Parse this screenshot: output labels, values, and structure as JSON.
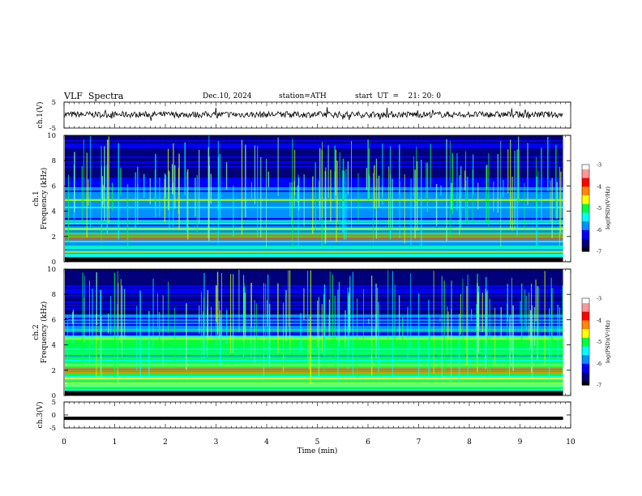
{
  "header": {
    "title": "VLF  Spectra",
    "date": "Dec.10, 2024",
    "station": "station=ATH",
    "start": "start  UT  =    21: 20: 0"
  },
  "chart_data": [
    {
      "type": "line",
      "id": "ch1",
      "ylabel": "ch.1(V)",
      "ylim": [
        -5,
        5
      ],
      "yticks": [
        "5",
        "-5"
      ],
      "x_range_min": [
        0,
        9.85
      ],
      "series": [
        {
          "approx_level_V": 0.2,
          "approx_noise_V": 1.2
        }
      ]
    },
    {
      "type": "heatmap",
      "id": "ch1-spectrogram",
      "channel_label": "ch.1",
      "ylabel": "Frequency  (kHz)",
      "ylim": [
        0,
        10
      ],
      "yticks": [
        "0",
        "2",
        "4",
        "6",
        "8",
        "10"
      ],
      "x_range_min": [
        0,
        9.85
      ],
      "dominant_bands_kHz": [
        0.3,
        0.8,
        1.2,
        1.8,
        2.1,
        2.6,
        3.2,
        4.9
      ],
      "colorbar": {
        "label": "log(PSD)(V²/Hz)",
        "range": [
          -7,
          -3
        ],
        "ticks": [
          "-3",
          "-4",
          "-5",
          "-6",
          "-7"
        ]
      }
    },
    {
      "type": "heatmap",
      "id": "ch2-spectrogram",
      "channel_label": "ch.2",
      "ylabel": "Frequency  (kHz)",
      "ylim": [
        0,
        10
      ],
      "yticks": [
        "0",
        "2",
        "4",
        "6",
        "8",
        "10"
      ],
      "x_range_min": [
        0,
        9.85
      ],
      "dominant_bands_kHz": [
        0.3,
        0.8,
        1.2,
        1.9,
        2.1,
        2.4,
        3.4,
        4.5,
        5.2
      ],
      "colorbar": {
        "label": "log(PSD)(V²/Hz)",
        "range": [
          -7,
          -3
        ],
        "ticks": [
          "-3",
          "-4",
          "-5",
          "-6",
          "-7"
        ]
      }
    },
    {
      "type": "line",
      "id": "ch3",
      "ylabel": "ch.3(V)",
      "ylim": [
        -5,
        5
      ],
      "yticks": [
        "5",
        "0",
        "-5"
      ],
      "x_range_min": [
        0,
        9.85
      ],
      "series": [
        {
          "approx_level_V": -1.3
        }
      ]
    }
  ],
  "xaxis": {
    "label": "Time  (min)",
    "range": [
      0,
      10
    ],
    "ticks": [
      "0",
      "1",
      "2",
      "3",
      "4",
      "5",
      "6",
      "7",
      "8",
      "9",
      "10"
    ]
  },
  "colormap": [
    "#000000",
    "#00007a",
    "#0000ff",
    "#0090ff",
    "#00ffff",
    "#00ff40",
    "#ffff00",
    "#ff8800",
    "#ff0000",
    "#ff9999",
    "#ffffff"
  ]
}
